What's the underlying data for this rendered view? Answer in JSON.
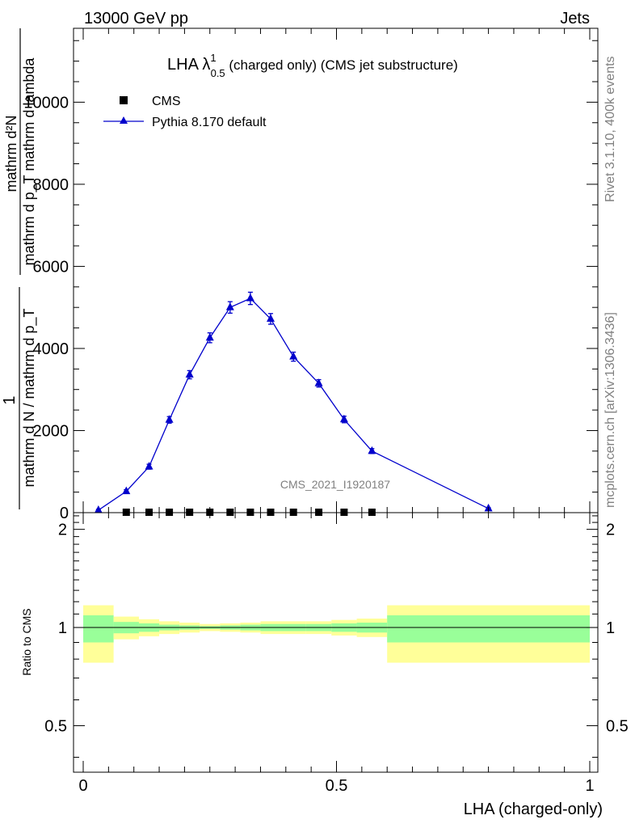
{
  "header": {
    "left": "13000 GeV pp",
    "right": "Jets"
  },
  "side": {
    "rivet": "Rivet 3.1.10,  400k events",
    "mcplots": "mcplots.cern.ch [arXiv:1306.3436]"
  },
  "chart_data": [
    {
      "type": "line",
      "title_main": "LHA λ",
      "title_sup": "1",
      "title_sub": "0.5",
      "title_rest": " (charged only) (CMS jet substructure)",
      "ylabel_num": "mathrm d²N",
      "ylabel_den": "mathrm d p_T mathrm d lambda",
      "ylabel_frac_num": "1",
      "ylabel_frac_den": "mathrm d N / mathrm d p_T",
      "watermark": "CMS_2021_I1920187",
      "xlim": [
        0,
        1
      ],
      "ylim": [
        0,
        11800
      ],
      "yticks": [
        {
          "v": 0,
          "label": "0"
        },
        {
          "v": 2000,
          "label": "2000"
        },
        {
          "v": 4000,
          "label": "4000"
        },
        {
          "v": 6000,
          "label": "6000"
        },
        {
          "v": 8000,
          "label": "8000"
        },
        {
          "v": 10000,
          "label": "10000"
        }
      ],
      "legend": [
        {
          "name": "CMS",
          "marker": "square",
          "color": "#000000"
        },
        {
          "name": "Pythia 8.170 default",
          "marker": "triangle",
          "color": "#0000cc"
        }
      ],
      "series": [
        {
          "name": "CMS",
          "color": "#000000",
          "x": [
            0.085,
            0.13,
            0.17,
            0.21,
            0.25,
            0.29,
            0.33,
            0.37,
            0.415,
            0.465,
            0.515,
            0.57
          ],
          "y": [
            10,
            10,
            10,
            10,
            10,
            10,
            10,
            10,
            10,
            10,
            10,
            10
          ]
        },
        {
          "name": "Pythia 8.170 default",
          "color": "#0000cc",
          "x": [
            0.03,
            0.085,
            0.13,
            0.17,
            0.21,
            0.25,
            0.29,
            0.33,
            0.37,
            0.415,
            0.465,
            0.515,
            0.57,
            0.8
          ],
          "y": [
            60,
            520,
            1120,
            2260,
            3360,
            4260,
            5000,
            5220,
            4720,
            3800,
            3150,
            2270,
            1500,
            100
          ],
          "err": [
            20,
            40,
            60,
            80,
            100,
            120,
            140,
            150,
            130,
            110,
            90,
            80,
            60,
            20
          ]
        }
      ]
    },
    {
      "type": "area",
      "ylabel": "Ratio to CMS",
      "xlabel": "LHA (charged-only)",
      "xlim": [
        0,
        1
      ],
      "ylim": [
        0.36,
        2.25
      ],
      "yticks": [
        {
          "v": 0.5,
          "label": "0.5"
        },
        {
          "v": 1,
          "label": "1"
        },
        {
          "v": 2,
          "label": "2"
        }
      ],
      "xticks": [
        {
          "v": 0,
          "label": "0"
        },
        {
          "v": 0.5,
          "label": "0.5"
        },
        {
          "v": 1,
          "label": "1"
        }
      ],
      "bins": [
        {
          "x0": 0.0,
          "x1": 0.06,
          "g_lo": 0.9,
          "g_hi": 1.09,
          "y_lo": 0.78,
          "y_hi": 1.17
        },
        {
          "x0": 0.06,
          "x1": 0.11,
          "g_lo": 0.96,
          "g_hi": 1.04,
          "y_lo": 0.92,
          "y_hi": 1.08
        },
        {
          "x0": 0.11,
          "x1": 0.15,
          "g_lo": 0.97,
          "g_hi": 1.03,
          "y_lo": 0.94,
          "y_hi": 1.06
        },
        {
          "x0": 0.15,
          "x1": 0.19,
          "g_lo": 0.98,
          "g_hi": 1.02,
          "y_lo": 0.955,
          "y_hi": 1.045
        },
        {
          "x0": 0.19,
          "x1": 0.23,
          "g_lo": 0.985,
          "g_hi": 1.015,
          "y_lo": 0.965,
          "y_hi": 1.035
        },
        {
          "x0": 0.23,
          "x1": 0.27,
          "g_lo": 0.99,
          "g_hi": 1.01,
          "y_lo": 0.975,
          "y_hi": 1.025
        },
        {
          "x0": 0.27,
          "x1": 0.31,
          "g_lo": 0.985,
          "g_hi": 1.015,
          "y_lo": 0.97,
          "y_hi": 1.03
        },
        {
          "x0": 0.31,
          "x1": 0.35,
          "g_lo": 0.98,
          "g_hi": 1.02,
          "y_lo": 0.965,
          "y_hi": 1.035
        },
        {
          "x0": 0.35,
          "x1": 0.39,
          "g_lo": 0.975,
          "g_hi": 1.025,
          "y_lo": 0.955,
          "y_hi": 1.045
        },
        {
          "x0": 0.39,
          "x1": 0.44,
          "g_lo": 0.975,
          "g_hi": 1.025,
          "y_lo": 0.955,
          "y_hi": 1.045
        },
        {
          "x0": 0.44,
          "x1": 0.49,
          "g_lo": 0.975,
          "g_hi": 1.025,
          "y_lo": 0.955,
          "y_hi": 1.045
        },
        {
          "x0": 0.49,
          "x1": 0.54,
          "g_lo": 0.97,
          "g_hi": 1.03,
          "y_lo": 0.945,
          "y_hi": 1.055
        },
        {
          "x0": 0.54,
          "x1": 0.6,
          "g_lo": 0.965,
          "g_hi": 1.035,
          "y_lo": 0.935,
          "y_hi": 1.065
        },
        {
          "x0": 0.6,
          "x1": 1.0,
          "g_lo": 0.9,
          "g_hi": 1.09,
          "y_lo": 0.78,
          "y_hi": 1.17
        }
      ],
      "band_colors": {
        "inner": "#99ff99",
        "outer": "#ffff99"
      }
    }
  ]
}
